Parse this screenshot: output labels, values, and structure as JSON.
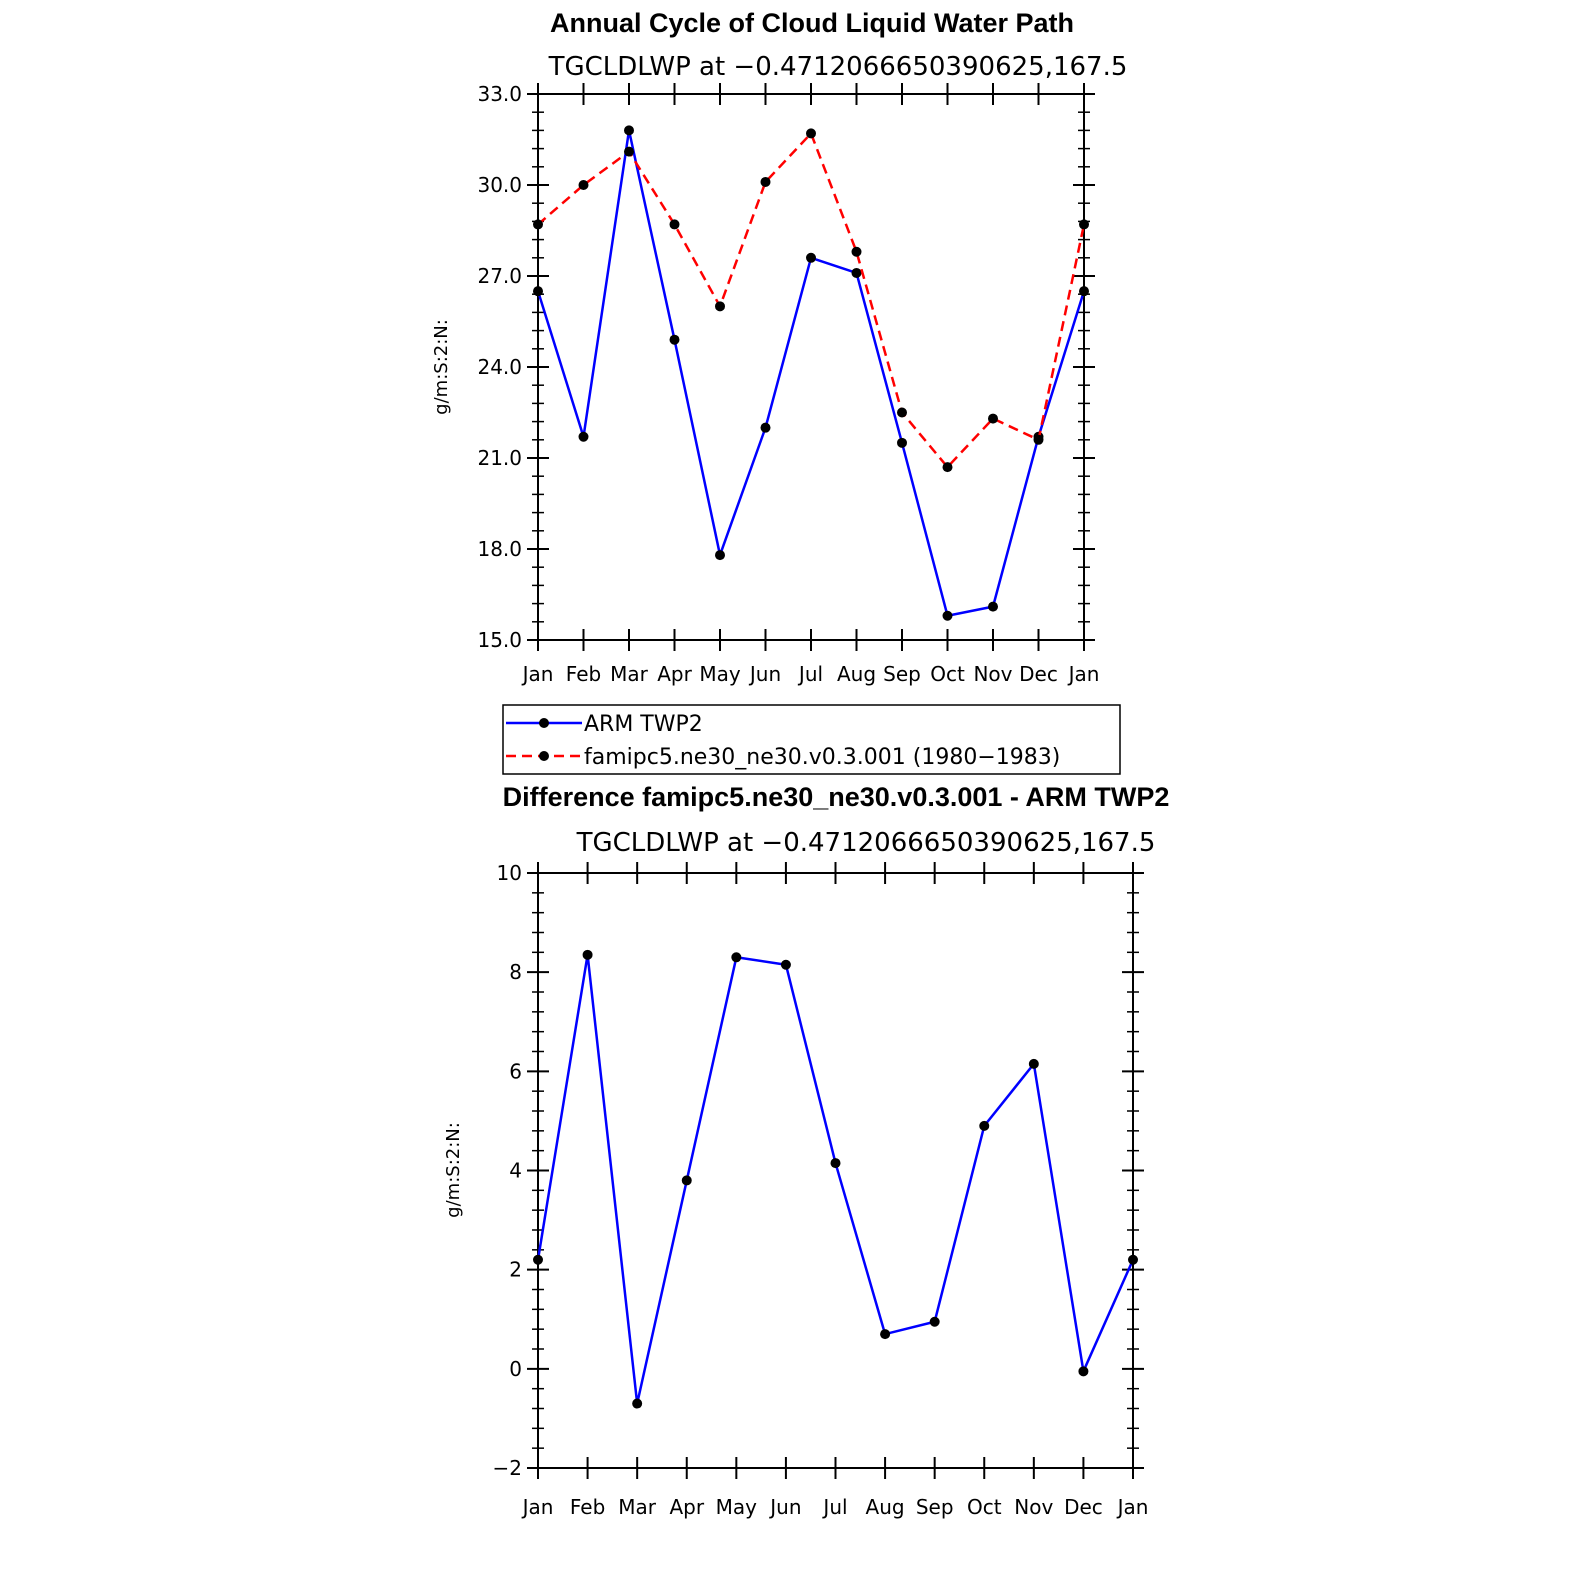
{
  "chart_data": [
    {
      "type": "line",
      "title": "Annual Cycle of Cloud Liquid Water Path",
      "subtitle": "TGCLDLWP  at  −0.4712066650390625,167.5",
      "ylabel": "g/m:S:2:N:",
      "xlabel": "",
      "ylim": [
        15.0,
        33.0
      ],
      "yticks": [
        "15.0",
        "18.0",
        "21.0",
        "24.0",
        "27.0",
        "30.0",
        "33.0"
      ],
      "categories": [
        "Jan",
        "Feb",
        "Mar",
        "Apr",
        "May",
        "Jun",
        "Jul",
        "Aug",
        "Sep",
        "Oct",
        "Nov",
        "Dec",
        "Jan"
      ],
      "grid": false,
      "legend": "below",
      "series": [
        {
          "name": "ARM TWP2",
          "color": "#0000ff",
          "dash": "solid",
          "marker": "black-dot",
          "values": [
            26.5,
            21.7,
            31.8,
            24.9,
            17.8,
            22.0,
            27.6,
            27.1,
            21.5,
            15.8,
            16.1,
            21.7,
            26.5
          ]
        },
        {
          "name": "famipc5.ne30_ne30.v0.3.001 (1980−1983)",
          "color": "#ff0000",
          "dash": "dashed",
          "marker": "black-dot",
          "values": [
            28.7,
            30.0,
            31.1,
            28.7,
            26.0,
            30.1,
            31.7,
            27.8,
            22.5,
            20.7,
            22.3,
            21.6,
            28.7
          ]
        }
      ]
    },
    {
      "type": "line",
      "title": "Difference famipc5.ne30_ne30.v0.3.001 - ARM TWP2",
      "subtitle": "TGCLDLWP  at  −0.4712066650390625,167.5",
      "ylabel": "g/m:S:2:N:",
      "xlabel": "",
      "ylim": [
        -2,
        10
      ],
      "yticks": [
        "−2",
        "0",
        "2",
        "4",
        "6",
        "8",
        "10"
      ],
      "categories": [
        "Jan",
        "Feb",
        "Mar",
        "Apr",
        "May",
        "Jun",
        "Jul",
        "Aug",
        "Sep",
        "Oct",
        "Nov",
        "Dec",
        "Jan"
      ],
      "grid": false,
      "series": [
        {
          "color": "#0000ff",
          "dash": "solid",
          "marker": "black-dot",
          "values": [
            2.2,
            8.35,
            -0.7,
            3.8,
            8.3,
            8.15,
            4.15,
            0.7,
            0.95,
            4.9,
            6.15,
            -0.05,
            2.2
          ]
        }
      ]
    }
  ]
}
